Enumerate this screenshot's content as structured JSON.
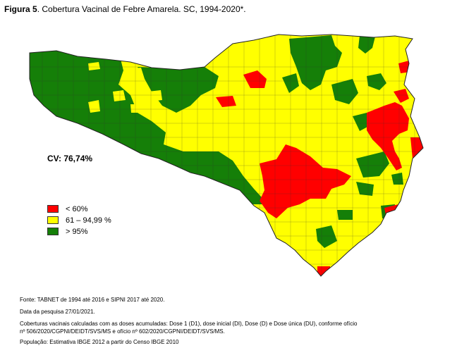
{
  "title": {
    "label": "Figura 5",
    "text": ". Cobertura Vacinal de Febre Amarela. SC, 1994-2020*."
  },
  "colors": {
    "low": "#ff0000",
    "mid": "#ffff00",
    "high": "#157f08",
    "border": "#444444"
  },
  "coverage_label": "CV: 76,74%",
  "legend": [
    {
      "label": "< 60%",
      "color": "#ff0000"
    },
    {
      "label": "61 – 94,99 %",
      "color": "#ffff00"
    },
    {
      "label": "> 95%",
      "color": "#157f08"
    }
  ],
  "notes": {
    "source": "Fonte: TABNET de 1994 até 2016 e SIPNI 2017 até 2020.",
    "date": "Data da pesquisa 27/01/2021.",
    "method_line1": "Coberturas vacinais calculadas com as doses acumuladas: Dose 1 (D1), dose inicial (DI),  Dose  (D) e Dose única (DU), conforme ofício",
    "method_line2": "nº 506/2020/CGPNI/DEIDT/SVS/MS e ofício nº 602/2020/CGPNI/DEIDT/SVS/MS.",
    "population": "População: Estimativa IBGE 2012 a partir do Censo IBGE 2010"
  }
}
